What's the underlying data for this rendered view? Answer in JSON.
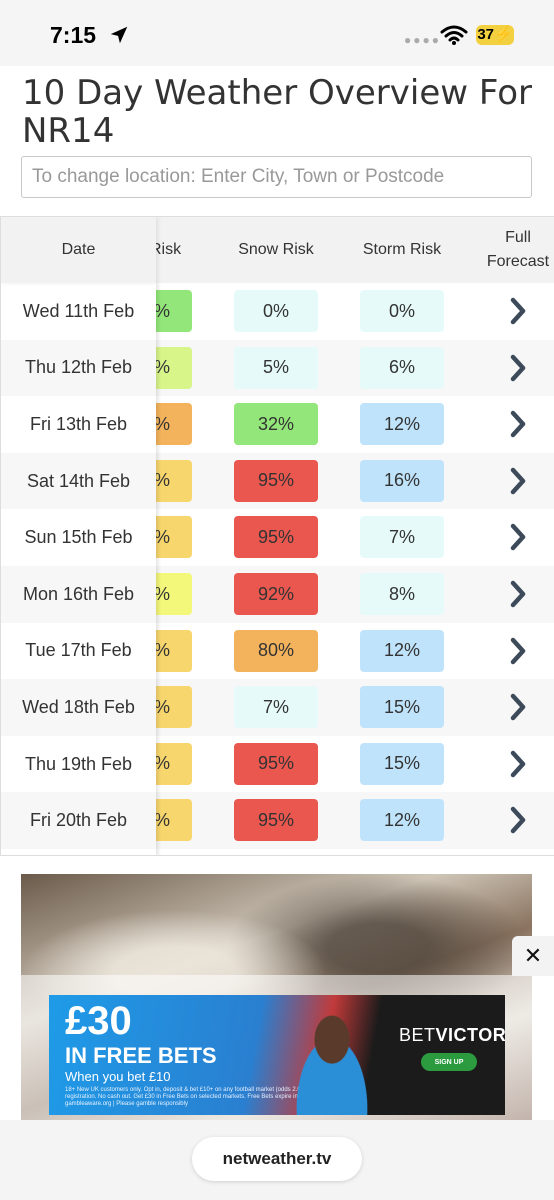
{
  "status_bar": {
    "time": "7:15",
    "battery": "37"
  },
  "page": {
    "title": "10 Day Weather Overview For NR14",
    "search_placeholder": "To change location: Enter City, Town or Postcode"
  },
  "table": {
    "headers": {
      "date": "Date",
      "prev_risk": "Risk",
      "snow_risk": "Snow Risk",
      "storm_risk": "Storm Risk",
      "full_forecast": "Full Forecast"
    },
    "rows": [
      {
        "date": "Wed 11th Feb",
        "prev": "%",
        "prev_color": "#93e77a",
        "snow": "0%",
        "snow_color": "#e6fafa",
        "storm": "0%",
        "storm_color": "#e6fafa"
      },
      {
        "date": "Thu 12th Feb",
        "prev": "%",
        "prev_color": "#d8f58a",
        "snow": "5%",
        "snow_color": "#e6fafa",
        "storm": "6%",
        "storm_color": "#e6fafa"
      },
      {
        "date": "Fri 13th Feb",
        "prev": "%",
        "prev_color": "#f3b35c",
        "snow": "32%",
        "snow_color": "#93e77a",
        "storm": "12%",
        "storm_color": "#bfe3fb"
      },
      {
        "date": "Sat 14th Feb",
        "prev": "%",
        "prev_color": "#f7d66e",
        "snow": "95%",
        "snow_color": "#e9574f",
        "storm": "16%",
        "storm_color": "#bfe3fb"
      },
      {
        "date": "Sun 15th Feb",
        "prev": "%",
        "prev_color": "#f7d66e",
        "snow": "95%",
        "snow_color": "#e9574f",
        "storm": "7%",
        "storm_color": "#e6fafa"
      },
      {
        "date": "Mon 16th Feb",
        "prev": "%",
        "prev_color": "#f3f77a",
        "snow": "92%",
        "snow_color": "#e9574f",
        "storm": "8%",
        "storm_color": "#e6fafa"
      },
      {
        "date": "Tue 17th Feb",
        "prev": "%",
        "prev_color": "#f7d66e",
        "snow": "80%",
        "snow_color": "#f3b35c",
        "storm": "12%",
        "storm_color": "#bfe3fb"
      },
      {
        "date": "Wed 18th Feb",
        "prev": "%",
        "prev_color": "#f7d66e",
        "snow": "7%",
        "snow_color": "#e6fafa",
        "storm": "15%",
        "storm_color": "#bfe3fb"
      },
      {
        "date": "Thu 19th Feb",
        "prev": "%",
        "prev_color": "#f7d66e",
        "snow": "95%",
        "snow_color": "#e9574f",
        "storm": "15%",
        "storm_color": "#bfe3fb"
      },
      {
        "date": "Fri 20th Feb",
        "prev": "%",
        "prev_color": "#f7d66e",
        "snow": "95%",
        "snow_color": "#e9574f",
        "storm": "12%",
        "storm_color": "#bfe3fb"
      }
    ]
  },
  "ad": {
    "close": "✕",
    "amount": "£30",
    "headline": "IN FREE BETS",
    "subline": "When you bet £10",
    "small_print": "18+ New UK customers only. Opt in, deposit & bet £10+ on any football market (odds 2.00+) within 7 days of registration. No cash out. Get £30 in Free Bets on selected markets. Free Bets expire in 7 days. Click for T&Cs. gambleaware.org | Please gamble responsibly",
    "brand_a": "BET",
    "brand_b": "VICTOR",
    "cta": "SIGN UP"
  },
  "browser": {
    "url": "netweather.tv"
  },
  "icons": {
    "location": "location-arrow-icon",
    "chevron": "chevron-right-icon",
    "wifi": "wifi-icon"
  }
}
